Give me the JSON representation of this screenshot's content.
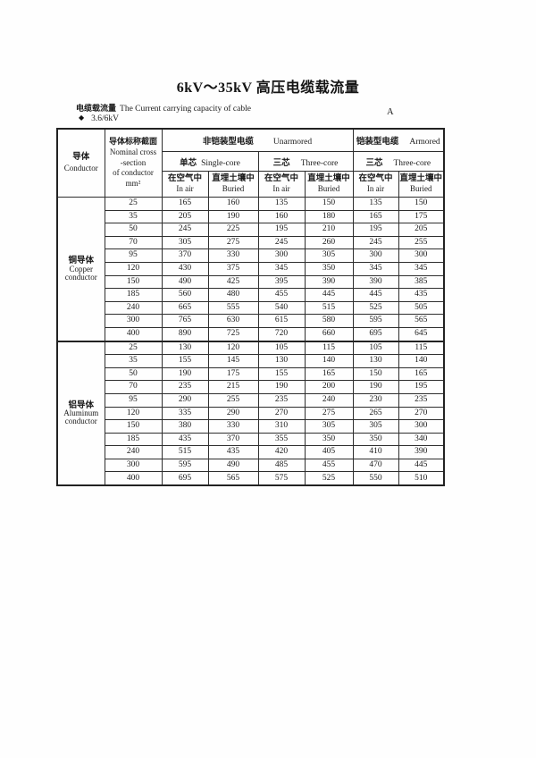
{
  "document": {
    "title": "6kV～35kV 高压电缆载流量",
    "subtitle_zh": "电缆载流量",
    "subtitle_en": "The Current carrying capacity of cable",
    "bullet": "◆",
    "voltage_rating": "3.6/6kV",
    "unit": "A"
  },
  "colors": {
    "background": "#fefefe",
    "text": "#1a1a1a",
    "border": "#2e2e2e"
  },
  "table": {
    "header": {
      "conductor_zh": "导体",
      "conductor_en": "Conductor",
      "cross_section_lines": [
        "导体标称截面",
        "Nominal cross",
        "-section",
        "of conductor",
        "mm²"
      ],
      "unarmored_zh": "非铠装型电缆",
      "unarmored_en": "Unarmored",
      "armored_zh": "铠装型电缆",
      "armored_en": "Armored",
      "single_core_zh": "单芯",
      "single_core_en": "Single-core",
      "three_core_zh": "三芯",
      "three_core_en": "Three-core",
      "in_air_zh": "在空气中",
      "in_air_en": "In air",
      "buried_zh": "直埋土壤中",
      "buried_en": "Buried"
    },
    "groups": [
      {
        "label_zh": "铜导体",
        "label_en_lines": [
          "Copper",
          "conductor"
        ],
        "rows": [
          {
            "section": "25",
            "values": [
              "165",
              "160",
              "135",
              "150",
              "135",
              "150"
            ]
          },
          {
            "section": "35",
            "values": [
              "205",
              "190",
              "160",
              "180",
              "165",
              "175"
            ]
          },
          {
            "section": "50",
            "values": [
              "245",
              "225",
              "195",
              "210",
              "195",
              "205"
            ]
          },
          {
            "section": "70",
            "values": [
              "305",
              "275",
              "245",
              "260",
              "245",
              "255"
            ]
          },
          {
            "section": "95",
            "values": [
              "370",
              "330",
              "300",
              "305",
              "300",
              "300"
            ]
          },
          {
            "section": "120",
            "values": [
              "430",
              "375",
              "345",
              "350",
              "345",
              "345"
            ]
          },
          {
            "section": "150",
            "values": [
              "490",
              "425",
              "395",
              "390",
              "390",
              "385"
            ]
          },
          {
            "section": "185",
            "values": [
              "560",
              "480",
              "455",
              "445",
              "445",
              "435"
            ]
          },
          {
            "section": "240",
            "values": [
              "665",
              "555",
              "540",
              "515",
              "525",
              "505"
            ]
          },
          {
            "section": "300",
            "values": [
              "765",
              "630",
              "615",
              "580",
              "595",
              "565"
            ]
          },
          {
            "section": "400",
            "values": [
              "890",
              "725",
              "720",
              "660",
              "695",
              "645"
            ]
          }
        ]
      },
      {
        "label_zh": "铝导体",
        "label_en_lines": [
          "Aluminum",
          "conductor"
        ],
        "rows": [
          {
            "section": "25",
            "values": [
              "130",
              "120",
              "105",
              "115",
              "105",
              "115"
            ]
          },
          {
            "section": "35",
            "values": [
              "155",
              "145",
              "130",
              "140",
              "130",
              "140"
            ]
          },
          {
            "section": "50",
            "values": [
              "190",
              "175",
              "155",
              "165",
              "150",
              "165"
            ]
          },
          {
            "section": "70",
            "values": [
              "235",
              "215",
              "190",
              "200",
              "190",
              "195"
            ]
          },
          {
            "section": "95",
            "values": [
              "290",
              "255",
              "235",
              "240",
              "230",
              "235"
            ]
          },
          {
            "section": "120",
            "values": [
              "335",
              "290",
              "270",
              "275",
              "265",
              "270"
            ]
          },
          {
            "section": "150",
            "values": [
              "380",
              "330",
              "310",
              "305",
              "305",
              "300"
            ]
          },
          {
            "section": "185",
            "values": [
              "435",
              "370",
              "355",
              "350",
              "350",
              "340"
            ]
          },
          {
            "section": "240",
            "values": [
              "515",
              "435",
              "420",
              "405",
              "410",
              "390"
            ]
          },
          {
            "section": "300",
            "values": [
              "595",
              "490",
              "485",
              "455",
              "470",
              "445"
            ]
          },
          {
            "section": "400",
            "values": [
              "695",
              "565",
              "575",
              "525",
              "550",
              "510"
            ]
          }
        ]
      }
    ]
  }
}
